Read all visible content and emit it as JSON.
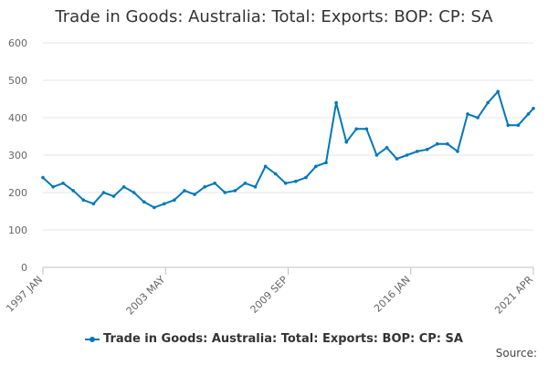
{
  "chart_data": {
    "type": "line",
    "title": "Trade in Goods: Australia: Total: Exports: BOP: CP: SA",
    "xlabel": "",
    "ylabel": "",
    "x_tick_labels": [
      "1997 JAN",
      "2003 MAY",
      "2009 SEP",
      "2016 JAN",
      "2021 APR"
    ],
    "y_ticks": [
      0,
      100,
      200,
      300,
      400,
      500,
      600
    ],
    "ylim": [
      0,
      600
    ],
    "x_start": "1997-01",
    "x_end": "2021-04",
    "grid": "horizontal",
    "legend_position": "bottom",
    "color": "#0077bb",
    "series": [
      {
        "name": "Trade in Goods: Australia: Total: Exports: BOP: CP: SA",
        "x": [
          "1997-01",
          "1997-07",
          "1998-01",
          "1998-07",
          "1999-01",
          "1999-07",
          "2000-01",
          "2000-07",
          "2001-01",
          "2001-07",
          "2002-01",
          "2002-07",
          "2003-01",
          "2003-07",
          "2004-01",
          "2004-07",
          "2005-01",
          "2005-07",
          "2006-01",
          "2006-07",
          "2007-01",
          "2007-07",
          "2008-01",
          "2008-07",
          "2009-01",
          "2009-07",
          "2010-01",
          "2010-07",
          "2011-01",
          "2011-07",
          "2012-01",
          "2012-07",
          "2013-01",
          "2013-07",
          "2014-01",
          "2014-07",
          "2015-01",
          "2015-07",
          "2016-01",
          "2016-07",
          "2017-01",
          "2017-07",
          "2018-01",
          "2018-07",
          "2019-01",
          "2019-07",
          "2020-01",
          "2020-07",
          "2021-01",
          "2021-04"
        ],
        "values": [
          240,
          215,
          225,
          205,
          180,
          170,
          200,
          190,
          215,
          200,
          175,
          160,
          170,
          180,
          205,
          195,
          215,
          225,
          200,
          205,
          225,
          215,
          270,
          250,
          225,
          230,
          240,
          270,
          280,
          440,
          335,
          370,
          370,
          300,
          320,
          290,
          300,
          310,
          315,
          330,
          330,
          310,
          410,
          400,
          440,
          470,
          380,
          380,
          410,
          425
        ]
      }
    ]
  },
  "source_label": "Source:"
}
